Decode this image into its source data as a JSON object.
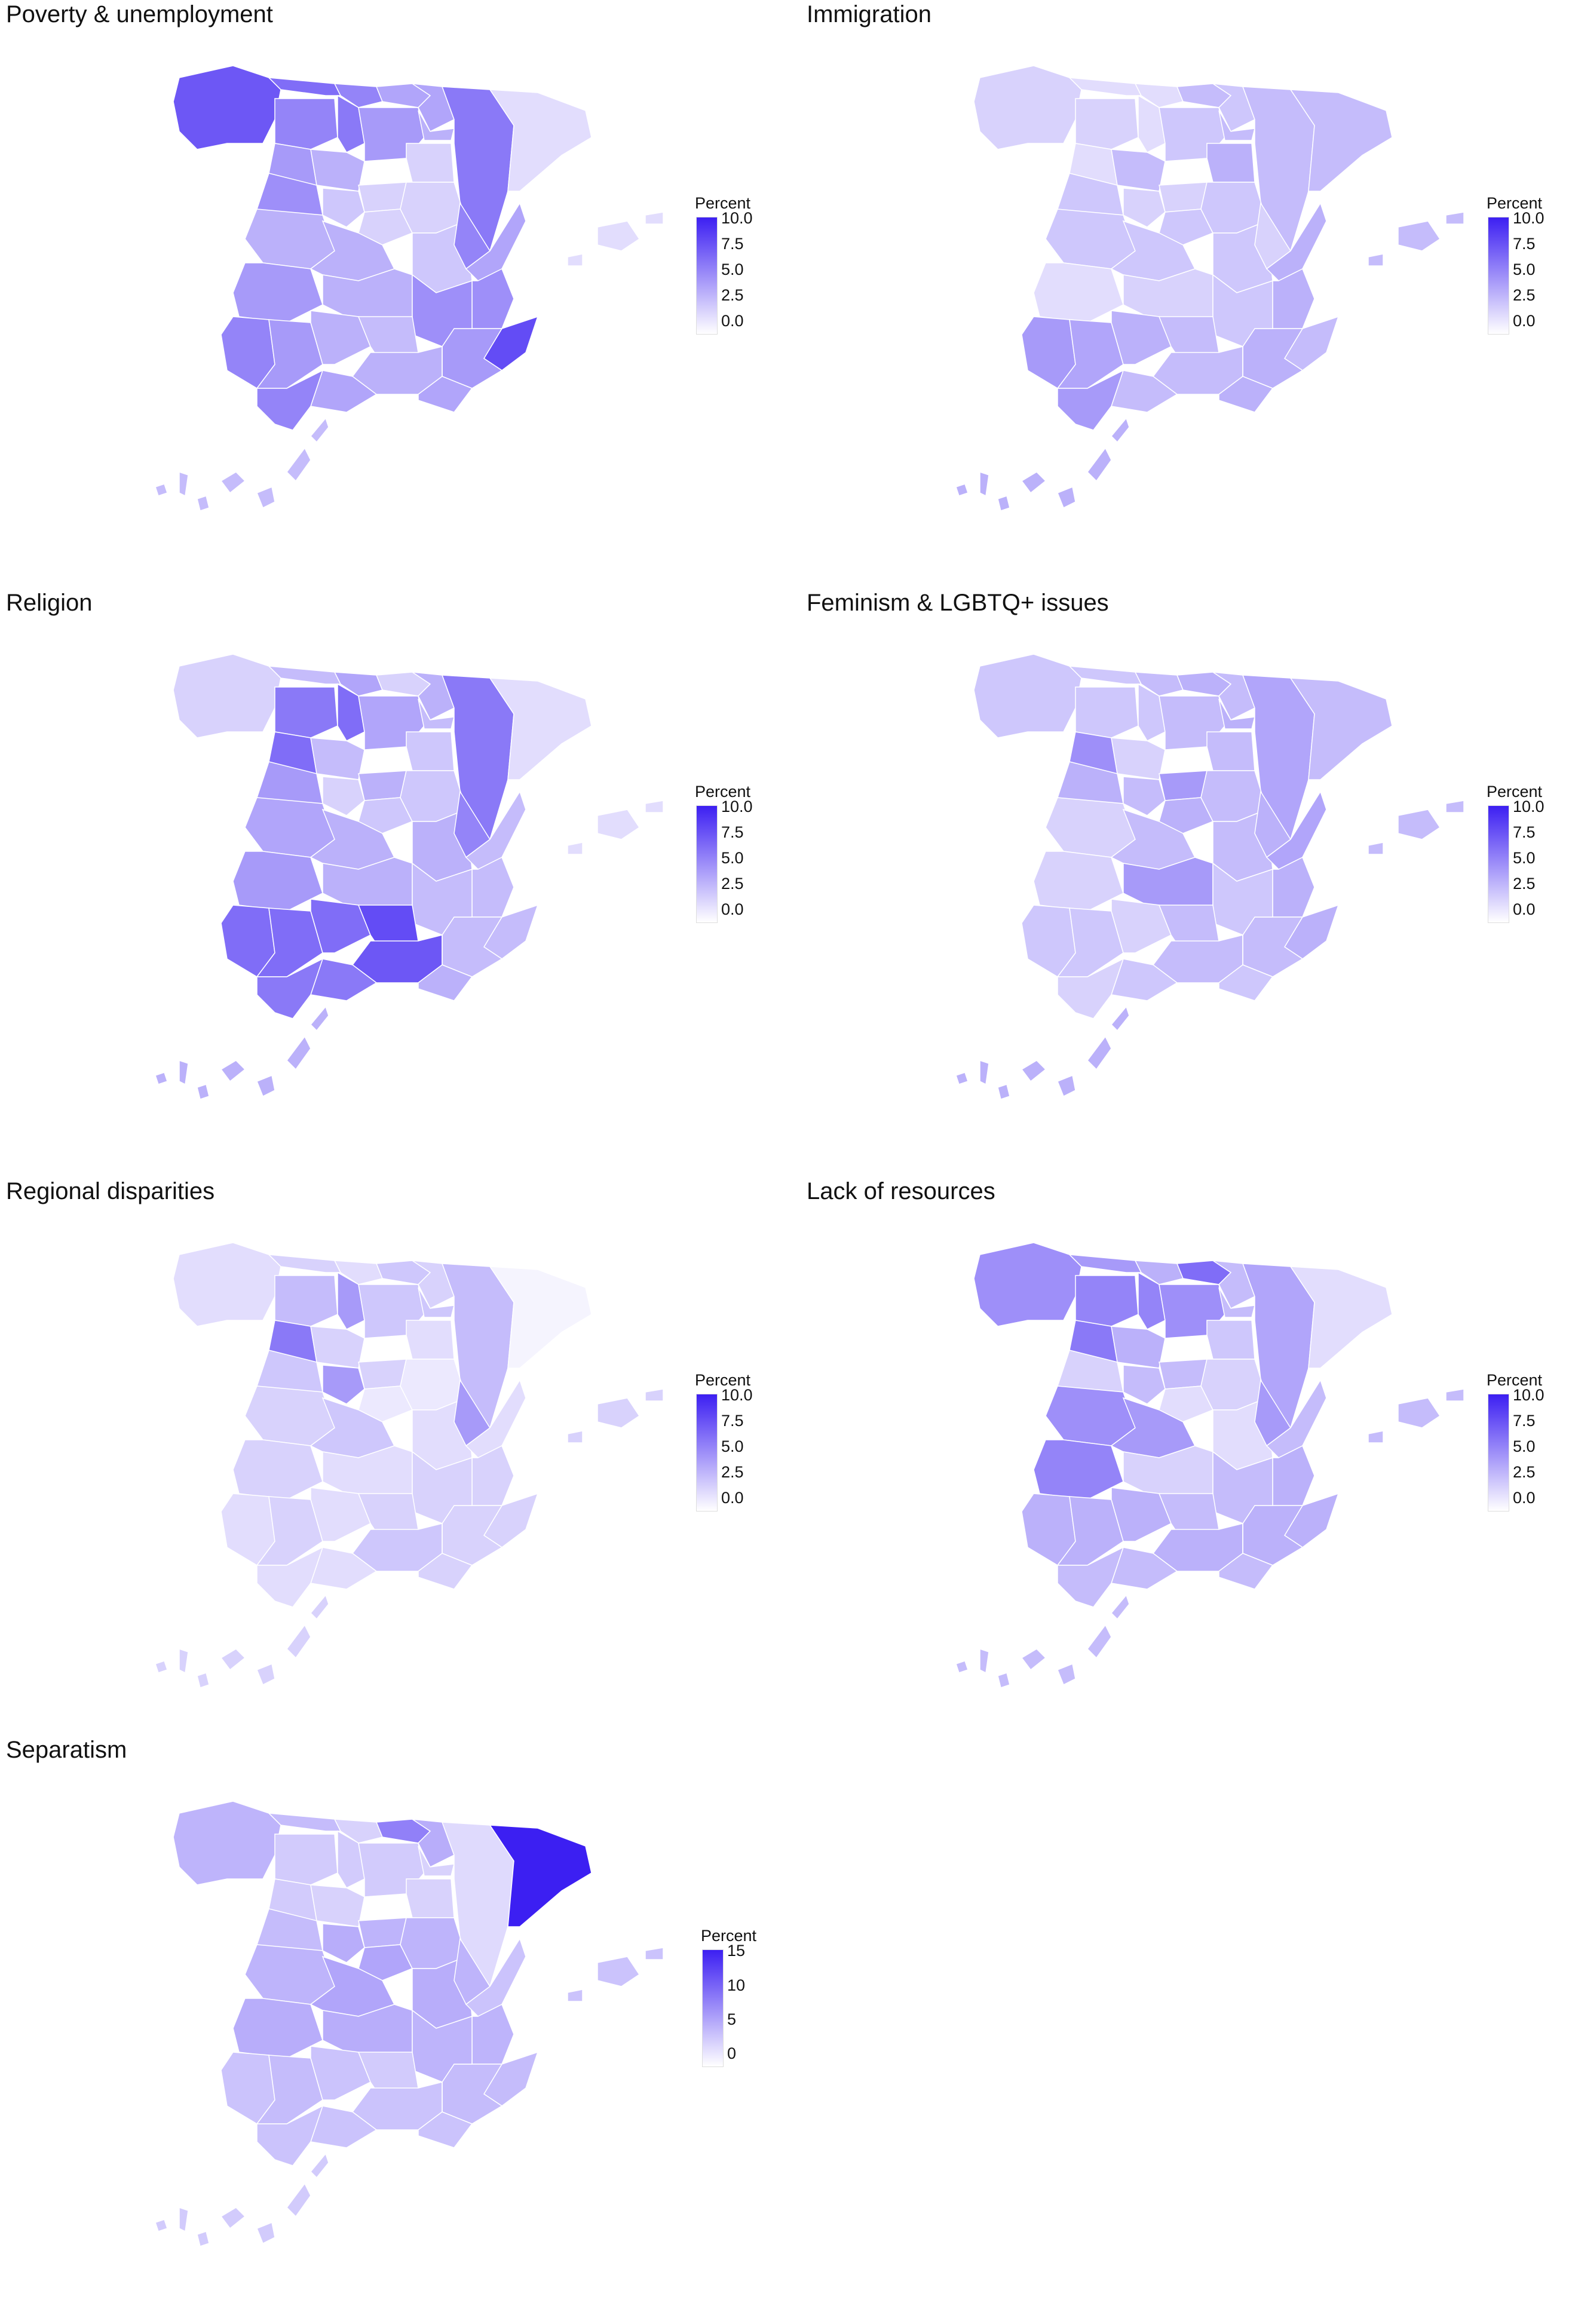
{
  "colors": {
    "low": "#ffffff",
    "high": "#3c1ff2",
    "border": "#ffffff"
  },
  "panels": [
    {
      "title": "Poverty & unemployment",
      "legend": {
        "title": "Percent",
        "ticks": [
          "10.0",
          "7.5",
          "5.0",
          "2.5",
          "0.0"
        ],
        "max": 10
      },
      "levels": {
        "galicia": 7.5,
        "asturias": 6.5,
        "cantabria": 5.5,
        "pais_vasco": 4.0,
        "navarra": 4.0,
        "leon": 5.5,
        "palencia": 6.0,
        "burgos": 4.5,
        "zamora": 4.5,
        "valladolid": 3.5,
        "soria": 2.0,
        "la_rioja": 3.5,
        "aragon": 6.0,
        "cataluna": 1.5,
        "salamanca": 5.0,
        "segovia": 2.0,
        "avila": 2.5,
        "madrid": 2.0,
        "guadalajara": 2.0,
        "cuenca": 2.5,
        "teruel": 5.5,
        "castellon": 4.0,
        "valencia": 5.0,
        "alicante": 8.0,
        "murcia": 4.5,
        "caceres": 3.5,
        "badajoz": 4.5,
        "toledo": 3.5,
        "ciudad_real": 3.5,
        "albacete": 5.0,
        "huelva": 5.5,
        "sevilla": 4.5,
        "cordoba": 3.5,
        "jaen": 3.0,
        "granada": 3.5,
        "almeria": 4.0,
        "malaga": 4.0,
        "cadiz": 5.5,
        "baleares": 1.5,
        "canarias": 3.0
      }
    },
    {
      "title": "Immigration",
      "legend": {
        "title": "Percent",
        "ticks": [
          "10.0",
          "7.5",
          "5.0",
          "2.5",
          "0.0"
        ],
        "max": 10
      },
      "levels": {
        "galicia": 2.0,
        "asturias": 1.5,
        "cantabria": 1.5,
        "pais_vasco": 3.0,
        "navarra": 2.5,
        "leon": 2.0,
        "palencia": 1.5,
        "burgos": 2.5,
        "zamora": 1.5,
        "valladolid": 3.0,
        "soria": 3.5,
        "la_rioja": 3.0,
        "aragon": 3.0,
        "cataluna": 3.0,
        "salamanca": 2.5,
        "segovia": 2.0,
        "avila": 2.0,
        "madrid": 2.5,
        "guadalajara": 2.5,
        "cuenca": 2.5,
        "teruel": 2.0,
        "castellon": 3.5,
        "valencia": 3.5,
        "alicante": 3.0,
        "murcia": 3.5,
        "caceres": 2.5,
        "badajoz": 1.5,
        "toledo": 2.5,
        "ciudad_real": 2.0,
        "albacete": 2.5,
        "huelva": 4.5,
        "sevilla": 4.0,
        "cordoba": 3.5,
        "jaen": 3.0,
        "granada": 3.0,
        "almeria": 3.5,
        "malaga": 3.0,
        "cadiz": 4.5,
        "baleares": 3.0,
        "canarias": 3.5
      }
    },
    {
      "title": "Religion",
      "legend": {
        "title": "Percent",
        "ticks": [
          "10.0",
          "7.5",
          "5.0",
          "2.5",
          "0.0"
        ],
        "max": 10
      },
      "levels": {
        "galicia": 2.0,
        "asturias": 3.0,
        "cantabria": 4.0,
        "pais_vasco": 2.0,
        "navarra": 3.5,
        "leon": 6.0,
        "palencia": 6.5,
        "burgos": 4.0,
        "zamora": 6.5,
        "valladolid": 3.0,
        "soria": 2.5,
        "la_rioja": 3.0,
        "aragon": 6.0,
        "cataluna": 1.5,
        "salamanca": 4.5,
        "segovia": 3.5,
        "avila": 2.0,
        "madrid": 2.5,
        "guadalajara": 2.5,
        "cuenca": 3.5,
        "teruel": 5.5,
        "castellon": 3.0,
        "valencia": 3.0,
        "alicante": 3.0,
        "murcia": 3.0,
        "caceres": 4.0,
        "badajoz": 4.5,
        "toledo": 3.5,
        "ciudad_real": 3.5,
        "albacete": 3.0,
        "huelva": 6.5,
        "sevilla": 6.5,
        "cordoba": 6.5,
        "jaen": 8.0,
        "granada": 7.5,
        "almeria": 3.5,
        "malaga": 6.0,
        "cadiz": 6.0,
        "baleares": 1.5,
        "canarias": 3.5
      }
    },
    {
      "title": "Feminism & LGBTQ+ issues",
      "legend": {
        "title": "Percent",
        "ticks": [
          "10.0",
          "7.5",
          "5.0",
          "2.5",
          "0.0"
        ],
        "max": 10
      },
      "levels": {
        "galicia": 2.5,
        "asturias": 2.5,
        "cantabria": 3.0,
        "pais_vasco": 3.5,
        "navarra": 3.0,
        "leon": 2.5,
        "palencia": 2.5,
        "burgos": 3.0,
        "zamora": 5.0,
        "valladolid": 2.0,
        "soria": 3.0,
        "la_rioja": 3.5,
        "aragon": 4.0,
        "cataluna": 3.0,
        "salamanca": 3.5,
        "segovia": 4.5,
        "avila": 3.0,
        "madrid": 3.5,
        "guadalajara": 3.0,
        "cuenca": 3.0,
        "teruel": 3.5,
        "castellon": 4.0,
        "valencia": 3.5,
        "alicante": 3.5,
        "murcia": 3.0,
        "caceres": 2.0,
        "badajoz": 2.0,
        "toledo": 3.0,
        "ciudad_real": 4.5,
        "albacete": 2.5,
        "huelva": 2.5,
        "sevilla": 2.5,
        "cordoba": 2.0,
        "jaen": 3.0,
        "granada": 3.0,
        "almeria": 2.5,
        "malaga": 2.5,
        "cadiz": 2.0,
        "baleares": 3.0,
        "canarias": 3.5
      }
    },
    {
      "title": "Regional disparities",
      "legend": {
        "title": "Percent",
        "ticks": [
          "10.0",
          "7.5",
          "5.0",
          "2.5",
          "0.0"
        ],
        "max": 10
      },
      "levels": {
        "galicia": 1.5,
        "asturias": 2.0,
        "cantabria": 1.5,
        "pais_vasco": 2.5,
        "navarra": 2.0,
        "leon": 3.0,
        "palencia": 4.5,
        "burgos": 2.5,
        "zamora": 6.0,
        "valladolid": 2.0,
        "soria": 1.5,
        "la_rioja": 2.5,
        "aragon": 3.0,
        "cataluna": 0.5,
        "salamanca": 2.5,
        "segovia": 2.0,
        "avila": 4.5,
        "madrid": 1.0,
        "guadalajara": 1.0,
        "cuenca": 1.5,
        "teruel": 4.5,
        "castellon": 1.5,
        "valencia": 2.0,
        "alicante": 2.0,
        "murcia": 2.0,
        "caceres": 2.0,
        "badajoz": 2.0,
        "toledo": 2.5,
        "ciudad_real": 1.5,
        "albacete": 2.0,
        "huelva": 1.5,
        "sevilla": 2.0,
        "cordoba": 1.5,
        "jaen": 2.0,
        "granada": 2.5,
        "almeria": 2.0,
        "malaga": 1.5,
        "cadiz": 1.5,
        "baleares": 2.0,
        "canarias": 2.0
      }
    },
    {
      "title": "Lack of resources",
      "legend": {
        "title": "Percent",
        "ticks": [
          "10.0",
          "7.5",
          "5.0",
          "2.5",
          "0.0"
        ],
        "max": 10
      },
      "levels": {
        "galicia": 5.0,
        "asturias": 4.5,
        "cantabria": 3.5,
        "pais_vasco": 6.5,
        "navarra": 3.0,
        "leon": 5.5,
        "palencia": 5.5,
        "burgos": 5.0,
        "zamora": 6.0,
        "valladolid": 3.5,
        "soria": 2.5,
        "la_rioja": 3.0,
        "aragon": 4.0,
        "cataluna": 1.5,
        "salamanca": 2.0,
        "segovia": 3.0,
        "avila": 3.0,
        "madrid": 1.5,
        "guadalajara": 2.0,
        "cuenca": 1.5,
        "teruel": 4.5,
        "castellon": 3.0,
        "valencia": 3.5,
        "alicante": 3.5,
        "murcia": 3.5,
        "caceres": 5.0,
        "badajoz": 5.5,
        "toledo": 4.5,
        "ciudad_real": 2.0,
        "albacete": 3.0,
        "huelva": 3.5,
        "sevilla": 3.5,
        "cordoba": 3.5,
        "jaen": 3.0,
        "granada": 3.5,
        "almeria": 3.0,
        "malaga": 3.0,
        "cadiz": 3.0,
        "baleares": 3.0,
        "canarias": 3.0
      }
    },
    {
      "title": "Separatism",
      "legend": {
        "title": "Percent",
        "ticks": [
          "15",
          "10",
          "5",
          "0"
        ],
        "max": 15
      },
      "levels": {
        "galicia": 5.0,
        "asturias": 4.5,
        "cantabria": 3.0,
        "pais_vasco": 8.5,
        "navarra": 5.5,
        "leon": 3.5,
        "palencia": 3.5,
        "burgos": 3.5,
        "zamora": 3.5,
        "valladolid": 3.0,
        "soria": 3.0,
        "la_rioja": 3.0,
        "aragon": 2.5,
        "cataluna": 15.0,
        "salamanca": 4.5,
        "segovia": 5.0,
        "avila": 5.5,
        "madrid": 6.0,
        "guadalajara": 5.0,
        "cuenca": 5.5,
        "teruel": 5.0,
        "castellon": 4.0,
        "valencia": 5.0,
        "alicante": 4.5,
        "murcia": 4.5,
        "caceres": 5.0,
        "badajoz": 5.5,
        "toledo": 6.0,
        "ciudad_real": 5.5,
        "albacete": 5.0,
        "huelva": 4.0,
        "sevilla": 4.5,
        "cordoba": 4.0,
        "jaen": 3.5,
        "granada": 4.0,
        "almeria": 4.0,
        "malaga": 4.0,
        "cadiz": 4.0,
        "baleares": 4.0,
        "canarias": 3.5
      }
    }
  ]
}
